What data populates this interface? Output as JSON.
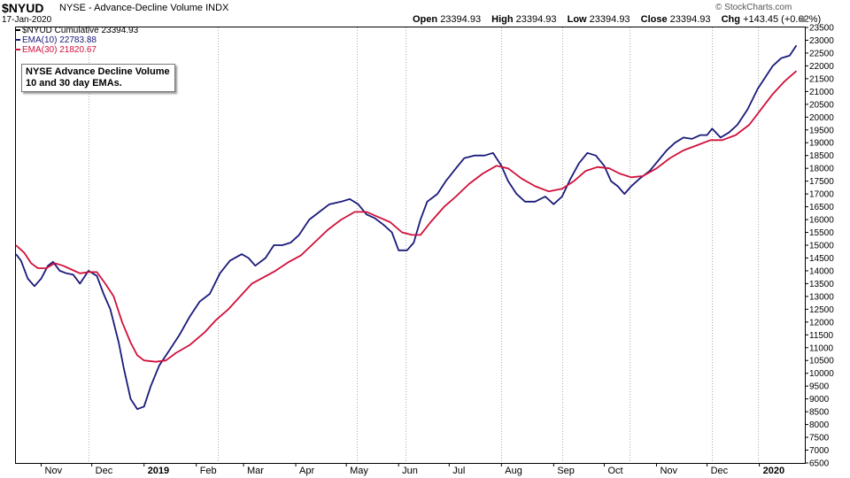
{
  "header": {
    "symbol": "$NYUD",
    "name": "NYSE - Advance-Decline Volume",
    "exchange": "INDX",
    "date": "17-Jan-2020",
    "watermark": "© StockCharts.com",
    "quote": {
      "open_label": "Open",
      "open": "23394.93",
      "high_label": "High",
      "high": "23394.93",
      "low_label": "Low",
      "low": "23394.93",
      "close_label": "Close",
      "close": "23394.93",
      "chg_label": "Chg",
      "chg": "+143.45 (+0.62%)"
    },
    "arrow_icon": "arrow-up-icon"
  },
  "legend": {
    "item1": "$NYUD Cumulative 23394.93",
    "item2": "EMA(10) 22783.88",
    "item3": "EMA(30) 21820.67"
  },
  "annotation": {
    "line1": "NYSE Advance Decline Volume",
    "line2": "10 and 30 day EMAs."
  },
  "colors": {
    "ema10": "#1a1a7a",
    "ema30": "#d0103a",
    "grid": "#aaaaaa",
    "axis": "#000000"
  },
  "chart_data": {
    "type": "line",
    "title": "NYSE - Advance-Decline Volume",
    "xlabel": "",
    "ylabel": "",
    "ylim": [
      6500,
      23500
    ],
    "y_ticks": [
      6500,
      7000,
      7500,
      8000,
      8500,
      9000,
      9500,
      10000,
      10500,
      11000,
      11500,
      12000,
      12500,
      13000,
      13500,
      14000,
      14500,
      15000,
      15500,
      16000,
      16500,
      17000,
      17500,
      18000,
      18500,
      19000,
      19500,
      20000,
      20500,
      21000,
      21500,
      22000,
      22500,
      23000,
      23500
    ],
    "x_domain": [
      "2018-10-17",
      "2020-01-28"
    ],
    "x_ticks": [
      {
        "label": "Nov",
        "date": "2018-11-01",
        "bold": false
      },
      {
        "label": "Dec",
        "date": "2018-12-01",
        "bold": false
      },
      {
        "label": "2019",
        "date": "2019-01-01",
        "bold": true
      },
      {
        "label": "Feb",
        "date": "2019-02-01",
        "bold": false
      },
      {
        "label": "Mar",
        "date": "2019-03-01",
        "bold": false
      },
      {
        "label": "Apr",
        "date": "2019-04-01",
        "bold": false
      },
      {
        "label": "May",
        "date": "2019-05-01",
        "bold": false
      },
      {
        "label": "Jun",
        "date": "2019-06-01",
        "bold": false
      },
      {
        "label": "Jul",
        "date": "2019-07-01",
        "bold": false
      },
      {
        "label": "Aug",
        "date": "2019-08-01",
        "bold": false
      },
      {
        "label": "Sep",
        "date": "2019-09-01",
        "bold": false
      },
      {
        "label": "Oct",
        "date": "2019-10-01",
        "bold": false
      },
      {
        "label": "Nov",
        "date": "2019-11-01",
        "bold": false
      },
      {
        "label": "Dec",
        "date": "2019-12-01",
        "bold": false
      },
      {
        "label": "2020",
        "date": "2020-01-01",
        "bold": true
      }
    ],
    "vertical_gridlines": [
      "2018-11-29",
      "2019-02-14",
      "2019-05-07",
      "2019-06-05",
      "2019-08-01",
      "2019-09-06",
      "2019-10-16",
      "2019-12-04",
      "2019-12-31"
    ],
    "grid": "vertical-dotted",
    "legend_position": "top-left",
    "series": [
      {
        "name": "EMA(10)",
        "color": "#1a1a7a",
        "points": [
          [
            "2018-10-17",
            14650
          ],
          [
            "2018-10-20",
            14400
          ],
          [
            "2018-10-24",
            13700
          ],
          [
            "2018-10-28",
            13400
          ],
          [
            "2018-11-01",
            13700
          ],
          [
            "2018-11-05",
            14200
          ],
          [
            "2018-11-08",
            14350
          ],
          [
            "2018-11-12",
            14000
          ],
          [
            "2018-11-16",
            13900
          ],
          [
            "2018-11-20",
            13850
          ],
          [
            "2018-11-24",
            13500
          ],
          [
            "2018-11-29",
            14000
          ],
          [
            "2018-12-04",
            13800
          ],
          [
            "2018-12-08",
            13100
          ],
          [
            "2018-12-12",
            12500
          ],
          [
            "2018-12-17",
            11200
          ],
          [
            "2018-12-20",
            10200
          ],
          [
            "2018-12-24",
            9000
          ],
          [
            "2018-12-28",
            8600
          ],
          [
            "2019-01-01",
            8700
          ],
          [
            "2019-01-05",
            9500
          ],
          [
            "2019-01-10",
            10300
          ],
          [
            "2019-01-16",
            10900
          ],
          [
            "2019-01-22",
            11500
          ],
          [
            "2019-01-28",
            12200
          ],
          [
            "2019-02-03",
            12800
          ],
          [
            "2019-02-09",
            13100
          ],
          [
            "2019-02-15",
            13900
          ],
          [
            "2019-02-21",
            14400
          ],
          [
            "2019-02-28",
            14650
          ],
          [
            "2019-03-04",
            14500
          ],
          [
            "2019-03-08",
            14200
          ],
          [
            "2019-03-14",
            14500
          ],
          [
            "2019-03-19",
            15000
          ],
          [
            "2019-03-24",
            15000
          ],
          [
            "2019-03-29",
            15100
          ],
          [
            "2019-04-03",
            15400
          ],
          [
            "2019-04-09",
            16000
          ],
          [
            "2019-04-15",
            16300
          ],
          [
            "2019-04-21",
            16600
          ],
          [
            "2019-04-28",
            16700
          ],
          [
            "2019-05-03",
            16800
          ],
          [
            "2019-05-08",
            16600
          ],
          [
            "2019-05-13",
            16200
          ],
          [
            "2019-05-18",
            16050
          ],
          [
            "2019-05-23",
            15800
          ],
          [
            "2019-05-28",
            15500
          ],
          [
            "2019-06-01",
            14800
          ],
          [
            "2019-06-06",
            14800
          ],
          [
            "2019-06-10",
            15100
          ],
          [
            "2019-06-14",
            16000
          ],
          [
            "2019-06-18",
            16700
          ],
          [
            "2019-06-24",
            17000
          ],
          [
            "2019-06-29",
            17500
          ],
          [
            "2019-07-05",
            18000
          ],
          [
            "2019-07-10",
            18400
          ],
          [
            "2019-07-16",
            18500
          ],
          [
            "2019-07-22",
            18500
          ],
          [
            "2019-07-27",
            18600
          ],
          [
            "2019-08-01",
            18100
          ],
          [
            "2019-08-05",
            17500
          ],
          [
            "2019-08-10",
            17000
          ],
          [
            "2019-08-15",
            16700
          ],
          [
            "2019-08-21",
            16700
          ],
          [
            "2019-08-27",
            16900
          ],
          [
            "2019-09-01",
            16600
          ],
          [
            "2019-09-06",
            16900
          ],
          [
            "2019-09-11",
            17600
          ],
          [
            "2019-09-16",
            18200
          ],
          [
            "2019-09-21",
            18600
          ],
          [
            "2019-09-26",
            18500
          ],
          [
            "2019-10-01",
            18100
          ],
          [
            "2019-10-05",
            17500
          ],
          [
            "2019-10-09",
            17300
          ],
          [
            "2019-10-13",
            17000
          ],
          [
            "2019-10-17",
            17300
          ],
          [
            "2019-10-22",
            17600
          ],
          [
            "2019-10-28",
            17900
          ],
          [
            "2019-11-02",
            18300
          ],
          [
            "2019-11-07",
            18700
          ],
          [
            "2019-11-12",
            19000
          ],
          [
            "2019-11-17",
            19200
          ],
          [
            "2019-11-22",
            19150
          ],
          [
            "2019-11-27",
            19300
          ],
          [
            "2019-12-01",
            19300
          ],
          [
            "2019-12-04",
            19550
          ],
          [
            "2019-12-09",
            19200
          ],
          [
            "2019-12-14",
            19400
          ],
          [
            "2019-12-19",
            19700
          ],
          [
            "2019-12-25",
            20300
          ],
          [
            "2019-12-31",
            21100
          ],
          [
            "2020-01-04",
            21500
          ],
          [
            "2020-01-09",
            22000
          ],
          [
            "2020-01-14",
            22300
          ],
          [
            "2020-01-19",
            22400
          ],
          [
            "2020-01-23",
            22800
          ]
        ]
      },
      {
        "name": "EMA(30)",
        "color": "#d0103a",
        "points": [
          [
            "2018-10-17",
            15000
          ],
          [
            "2018-10-22",
            14700
          ],
          [
            "2018-10-26",
            14300
          ],
          [
            "2018-10-30",
            14100
          ],
          [
            "2018-11-04",
            14100
          ],
          [
            "2018-11-09",
            14300
          ],
          [
            "2018-11-14",
            14200
          ],
          [
            "2018-11-19",
            14050
          ],
          [
            "2018-11-24",
            13900
          ],
          [
            "2018-11-29",
            13950
          ],
          [
            "2018-12-04",
            13950
          ],
          [
            "2018-12-09",
            13500
          ],
          [
            "2018-12-14",
            13000
          ],
          [
            "2018-12-19",
            12000
          ],
          [
            "2018-12-24",
            11200
          ],
          [
            "2018-12-28",
            10700
          ],
          [
            "2019-01-01",
            10500
          ],
          [
            "2019-01-08",
            10450
          ],
          [
            "2019-01-14",
            10500
          ],
          [
            "2019-01-20",
            10800
          ],
          [
            "2019-01-28",
            11100
          ],
          [
            "2019-02-06",
            11600
          ],
          [
            "2019-02-13",
            12100
          ],
          [
            "2019-02-20",
            12500
          ],
          [
            "2019-02-27",
            13000
          ],
          [
            "2019-03-06",
            13500
          ],
          [
            "2019-03-13",
            13750
          ],
          [
            "2019-03-20",
            14000
          ],
          [
            "2019-03-28",
            14350
          ],
          [
            "2019-04-04",
            14600
          ],
          [
            "2019-04-12",
            15100
          ],
          [
            "2019-04-20",
            15600
          ],
          [
            "2019-04-28",
            16000
          ],
          [
            "2019-05-06",
            16300
          ],
          [
            "2019-05-13",
            16300
          ],
          [
            "2019-05-20",
            16100
          ],
          [
            "2019-05-27",
            15900
          ],
          [
            "2019-06-03",
            15500
          ],
          [
            "2019-06-09",
            15400
          ],
          [
            "2019-06-14",
            15400
          ],
          [
            "2019-06-20",
            15900
          ],
          [
            "2019-06-28",
            16500
          ],
          [
            "2019-07-05",
            16900
          ],
          [
            "2019-07-13",
            17400
          ],
          [
            "2019-07-21",
            17800
          ],
          [
            "2019-07-29",
            18100
          ],
          [
            "2019-08-05",
            18000
          ],
          [
            "2019-08-13",
            17600
          ],
          [
            "2019-08-21",
            17300
          ],
          [
            "2019-08-29",
            17100
          ],
          [
            "2019-09-06",
            17200
          ],
          [
            "2019-09-13",
            17500
          ],
          [
            "2019-09-20",
            17900
          ],
          [
            "2019-09-27",
            18050
          ],
          [
            "2019-10-04",
            18000
          ],
          [
            "2019-10-10",
            17800
          ],
          [
            "2019-10-17",
            17650
          ],
          [
            "2019-10-24",
            17700
          ],
          [
            "2019-11-01",
            18000
          ],
          [
            "2019-11-09",
            18400
          ],
          [
            "2019-11-17",
            18700
          ],
          [
            "2019-11-25",
            18900
          ],
          [
            "2019-12-03",
            19100
          ],
          [
            "2019-12-10",
            19100
          ],
          [
            "2019-12-18",
            19300
          ],
          [
            "2019-12-26",
            19700
          ],
          [
            "2020-01-02",
            20300
          ],
          [
            "2020-01-09",
            20900
          ],
          [
            "2020-01-16",
            21400
          ],
          [
            "2020-01-23",
            21800
          ]
        ]
      }
    ]
  }
}
